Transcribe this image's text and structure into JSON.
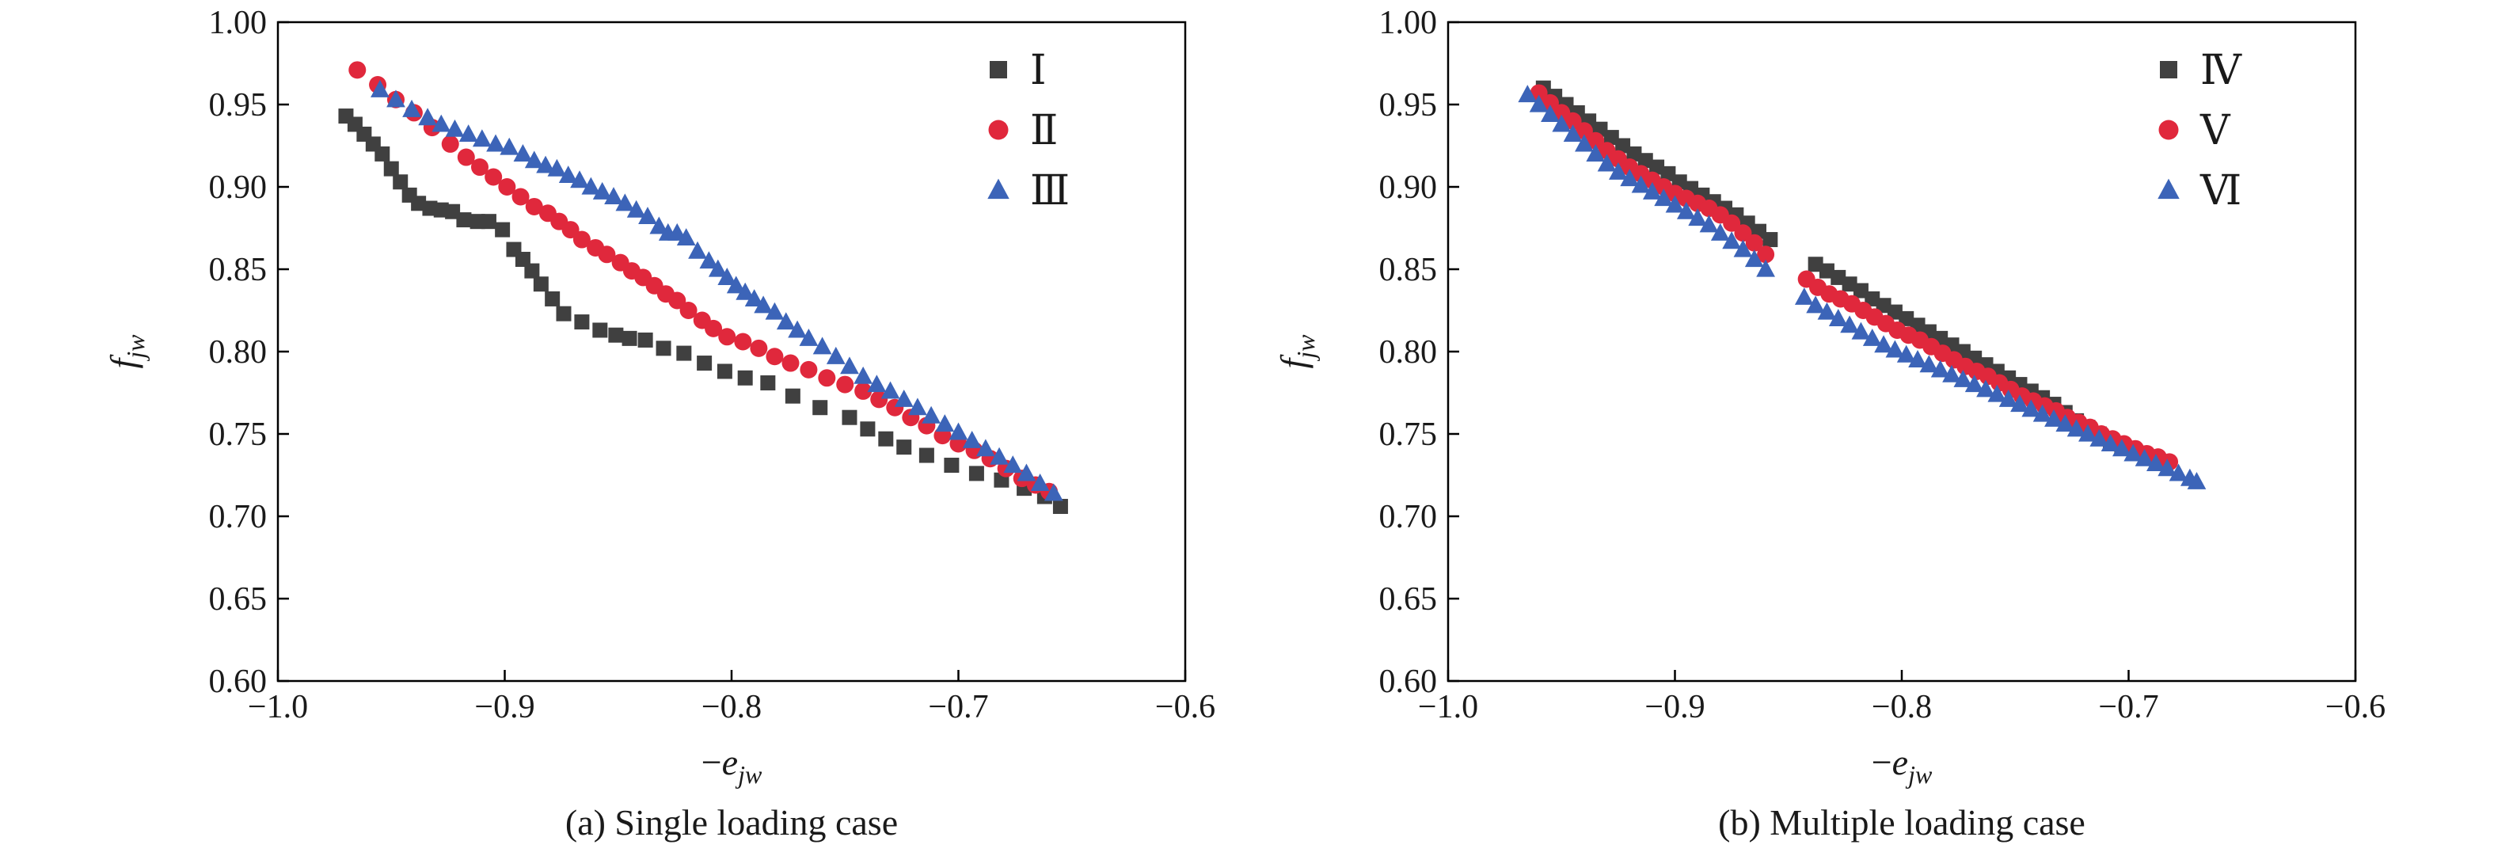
{
  "colors": {
    "square": "#404040",
    "circle": "#e0283c",
    "triangle": "#3c64b8",
    "axis": "#000000"
  },
  "chart_data": [
    {
      "type": "scatter",
      "caption": "(a) Single loading case",
      "xlabel_sign": "−",
      "xlabel_main": "e",
      "xlabel_sub": "jw",
      "ylabel_main": "f",
      "ylabel_sub": "jw",
      "xlim": [
        -1.0,
        -0.6
      ],
      "ylim": [
        0.6,
        1.0
      ],
      "xticks": [
        -1.0,
        -0.9,
        -0.8,
        -0.7,
        -0.6
      ],
      "xtick_labels": [
        "−1.0",
        "−0.9",
        "−0.8",
        "−0.7",
        "−0.6"
      ],
      "yticks": [
        0.6,
        0.65,
        0.7,
        0.75,
        0.8,
        0.85,
        0.9,
        0.95,
        1.0
      ],
      "ytick_labels": [
        "0.60",
        "0.65",
        "0.70",
        "0.75",
        "0.80",
        "0.85",
        "0.90",
        "0.95",
        "1.00"
      ],
      "legend_position": "top-right",
      "series": [
        {
          "name": "Ⅰ",
          "marker": "square",
          "x": [
            -0.97,
            -0.966,
            -0.962,
            -0.958,
            -0.954,
            -0.95,
            -0.946,
            -0.942,
            -0.938,
            -0.933,
            -0.928,
            -0.923,
            -0.918,
            -0.912,
            -0.907,
            -0.901,
            -0.896,
            -0.892,
            -0.888,
            -0.884,
            -0.879,
            -0.874,
            -0.866,
            -0.858,
            -0.851,
            -0.845,
            -0.838,
            -0.83,
            -0.821,
            -0.812,
            -0.803,
            -0.794,
            -0.784,
            -0.773,
            -0.761,
            -0.748,
            -0.74,
            -0.732,
            -0.724,
            -0.714,
            -0.703,
            -0.692,
            -0.681,
            -0.671,
            -0.662,
            -0.655
          ],
          "y": [
            0.943,
            0.938,
            0.932,
            0.926,
            0.92,
            0.911,
            0.903,
            0.895,
            0.89,
            0.887,
            0.886,
            0.885,
            0.88,
            0.879,
            0.879,
            0.874,
            0.862,
            0.856,
            0.849,
            0.841,
            0.832,
            0.823,
            0.818,
            0.813,
            0.81,
            0.808,
            0.807,
            0.802,
            0.799,
            0.793,
            0.788,
            0.784,
            0.781,
            0.773,
            0.766,
            0.76,
            0.753,
            0.747,
            0.742,
            0.737,
            0.731,
            0.726,
            0.722,
            0.717,
            0.712,
            0.706
          ]
        },
        {
          "name": "Ⅱ",
          "marker": "circle",
          "x": [
            -0.965,
            -0.956,
            -0.948,
            -0.94,
            -0.932,
            -0.924,
            -0.917,
            -0.911,
            -0.905,
            -0.899,
            -0.893,
            -0.887,
            -0.881,
            -0.876,
            -0.871,
            -0.866,
            -0.86,
            -0.855,
            -0.849,
            -0.844,
            -0.839,
            -0.834,
            -0.829,
            -0.824,
            -0.819,
            -0.813,
            -0.808,
            -0.802,
            -0.795,
            -0.788,
            -0.781,
            -0.774,
            -0.766,
            -0.758,
            -0.75,
            -0.742,
            -0.735,
            -0.728,
            -0.721,
            -0.714,
            -0.707,
            -0.7,
            -0.693,
            -0.686,
            -0.679,
            -0.672,
            -0.666,
            -0.66
          ],
          "y": [
            0.971,
            0.962,
            0.953,
            0.945,
            0.936,
            0.926,
            0.918,
            0.912,
            0.906,
            0.9,
            0.894,
            0.888,
            0.884,
            0.879,
            0.874,
            0.868,
            0.863,
            0.859,
            0.854,
            0.849,
            0.845,
            0.84,
            0.835,
            0.831,
            0.825,
            0.819,
            0.814,
            0.809,
            0.806,
            0.802,
            0.797,
            0.793,
            0.789,
            0.784,
            0.78,
            0.776,
            0.771,
            0.766,
            0.76,
            0.755,
            0.749,
            0.744,
            0.74,
            0.735,
            0.729,
            0.723,
            0.719,
            0.715
          ]
        },
        {
          "name": "Ⅲ",
          "marker": "triangle",
          "x": [
            -0.955,
            -0.948,
            -0.941,
            -0.934,
            -0.928,
            -0.922,
            -0.916,
            -0.91,
            -0.904,
            -0.898,
            -0.892,
            -0.887,
            -0.882,
            -0.877,
            -0.872,
            -0.867,
            -0.862,
            -0.857,
            -0.852,
            -0.847,
            -0.842,
            -0.837,
            -0.832,
            -0.828,
            -0.824,
            -0.82,
            -0.815,
            -0.81,
            -0.806,
            -0.802,
            -0.798,
            -0.794,
            -0.79,
            -0.786,
            -0.781,
            -0.776,
            -0.771,
            -0.766,
            -0.76,
            -0.754,
            -0.748,
            -0.742,
            -0.736,
            -0.73,
            -0.724,
            -0.718,
            -0.712,
            -0.706,
            -0.7,
            -0.694,
            -0.688,
            -0.682,
            -0.676,
            -0.67,
            -0.664,
            -0.658
          ],
          "y": [
            0.959,
            0.953,
            0.947,
            0.942,
            0.938,
            0.935,
            0.932,
            0.929,
            0.926,
            0.924,
            0.92,
            0.916,
            0.913,
            0.911,
            0.907,
            0.904,
            0.9,
            0.897,
            0.894,
            0.89,
            0.886,
            0.882,
            0.876,
            0.872,
            0.872,
            0.869,
            0.861,
            0.855,
            0.85,
            0.845,
            0.84,
            0.836,
            0.832,
            0.828,
            0.824,
            0.818,
            0.813,
            0.808,
            0.803,
            0.797,
            0.791,
            0.785,
            0.78,
            0.776,
            0.771,
            0.766,
            0.761,
            0.756,
            0.751,
            0.746,
            0.741,
            0.736,
            0.731,
            0.726,
            0.72,
            0.714
          ]
        }
      ]
    },
    {
      "type": "scatter",
      "caption": "(b) Multiple loading case",
      "xlabel_sign": "−",
      "xlabel_main": "e",
      "xlabel_sub": "jw",
      "ylabel_main": "f",
      "ylabel_sub": "jw",
      "xlim": [
        -1.0,
        -0.6
      ],
      "ylim": [
        0.6,
        1.0
      ],
      "xticks": [
        -1.0,
        -0.9,
        -0.8,
        -0.7,
        -0.6
      ],
      "xtick_labels": [
        "−1.0",
        "−0.9",
        "−0.8",
        "−0.7",
        "−0.6"
      ],
      "yticks": [
        0.6,
        0.65,
        0.7,
        0.75,
        0.8,
        0.85,
        0.9,
        0.95,
        1.0
      ],
      "ytick_labels": [
        "0.60",
        "0.65",
        "0.70",
        "0.75",
        "0.80",
        "0.85",
        "0.90",
        "0.95",
        "1.00"
      ],
      "legend_position": "top-right",
      "series": [
        {
          "name": "Ⅳ",
          "marker": "square",
          "x": [
            -0.958,
            -0.953,
            -0.948,
            -0.943,
            -0.938,
            -0.933,
            -0.928,
            -0.923,
            -0.918,
            -0.913,
            -0.908,
            -0.903,
            -0.898,
            -0.893,
            -0.888,
            -0.883,
            -0.878,
            -0.873,
            -0.868,
            -0.863,
            -0.858,
            -0.838,
            -0.833,
            -0.828,
            -0.823,
            -0.818,
            -0.813,
            -0.808,
            -0.803,
            -0.798,
            -0.793,
            -0.788,
            -0.783,
            -0.778,
            -0.773,
            -0.768,
            -0.763,
            -0.758,
            -0.753,
            -0.748,
            -0.743,
            -0.738,
            -0.733,
            -0.728,
            -0.723,
            -0.718,
            -0.713,
            -0.708,
            -0.703
          ],
          "y": [
            0.96,
            0.955,
            0.95,
            0.945,
            0.94,
            0.935,
            0.93,
            0.925,
            0.92,
            0.916,
            0.912,
            0.908,
            0.903,
            0.899,
            0.895,
            0.891,
            0.887,
            0.883,
            0.878,
            0.873,
            0.868,
            0.853,
            0.849,
            0.845,
            0.841,
            0.837,
            0.832,
            0.828,
            0.824,
            0.82,
            0.816,
            0.812,
            0.808,
            0.804,
            0.8,
            0.796,
            0.792,
            0.788,
            0.784,
            0.78,
            0.776,
            0.772,
            0.768,
            0.763,
            0.758,
            0.754,
            0.75,
            0.746,
            0.742
          ]
        },
        {
          "name": "Ⅴ",
          "marker": "circle",
          "x": [
            -0.96,
            -0.955,
            -0.95,
            -0.945,
            -0.94,
            -0.935,
            -0.93,
            -0.925,
            -0.92,
            -0.915,
            -0.91,
            -0.905,
            -0.9,
            -0.895,
            -0.89,
            -0.885,
            -0.88,
            -0.875,
            -0.87,
            -0.865,
            -0.86,
            -0.842,
            -0.837,
            -0.832,
            -0.827,
            -0.822,
            -0.817,
            -0.812,
            -0.807,
            -0.802,
            -0.797,
            -0.792,
            -0.787,
            -0.782,
            -0.777,
            -0.772,
            -0.767,
            -0.762,
            -0.757,
            -0.752,
            -0.747,
            -0.742,
            -0.737,
            -0.732,
            -0.727,
            -0.722,
            -0.717,
            -0.712,
            -0.707,
            -0.702,
            -0.697,
            -0.692,
            -0.687,
            -0.682
          ],
          "y": [
            0.957,
            0.951,
            0.945,
            0.94,
            0.934,
            0.928,
            0.922,
            0.917,
            0.912,
            0.908,
            0.904,
            0.9,
            0.896,
            0.893,
            0.89,
            0.887,
            0.883,
            0.878,
            0.872,
            0.866,
            0.859,
            0.844,
            0.839,
            0.835,
            0.832,
            0.829,
            0.825,
            0.821,
            0.817,
            0.813,
            0.81,
            0.807,
            0.803,
            0.799,
            0.795,
            0.791,
            0.788,
            0.785,
            0.781,
            0.777,
            0.773,
            0.77,
            0.767,
            0.764,
            0.76,
            0.757,
            0.754,
            0.75,
            0.747,
            0.744,
            0.741,
            0.738,
            0.736,
            0.733
          ]
        },
        {
          "name": "Ⅵ",
          "marker": "triangle",
          "x": [
            -0.965,
            -0.96,
            -0.955,
            -0.95,
            -0.945,
            -0.94,
            -0.935,
            -0.93,
            -0.925,
            -0.92,
            -0.915,
            -0.91,
            -0.905,
            -0.9,
            -0.895,
            -0.89,
            -0.885,
            -0.88,
            -0.875,
            -0.87,
            -0.865,
            -0.86,
            -0.843,
            -0.838,
            -0.833,
            -0.828,
            -0.823,
            -0.818,
            -0.813,
            -0.808,
            -0.803,
            -0.798,
            -0.793,
            -0.788,
            -0.783,
            -0.778,
            -0.773,
            -0.768,
            -0.763,
            -0.758,
            -0.753,
            -0.748,
            -0.743,
            -0.738,
            -0.733,
            -0.728,
            -0.723,
            -0.718,
            -0.713,
            -0.708,
            -0.703,
            -0.698,
            -0.693,
            -0.688,
            -0.683,
            -0.678,
            -0.673,
            -0.67
          ],
          "y": [
            0.956,
            0.95,
            0.944,
            0.938,
            0.932,
            0.926,
            0.92,
            0.914,
            0.909,
            0.905,
            0.901,
            0.897,
            0.893,
            0.889,
            0.885,
            0.881,
            0.877,
            0.872,
            0.867,
            0.862,
            0.856,
            0.85,
            0.833,
            0.828,
            0.824,
            0.82,
            0.816,
            0.812,
            0.808,
            0.804,
            0.801,
            0.798,
            0.795,
            0.792,
            0.789,
            0.786,
            0.783,
            0.78,
            0.777,
            0.774,
            0.771,
            0.768,
            0.765,
            0.762,
            0.759,
            0.756,
            0.753,
            0.75,
            0.747,
            0.744,
            0.741,
            0.738,
            0.735,
            0.732,
            0.729,
            0.726,
            0.723,
            0.721
          ]
        }
      ]
    }
  ]
}
